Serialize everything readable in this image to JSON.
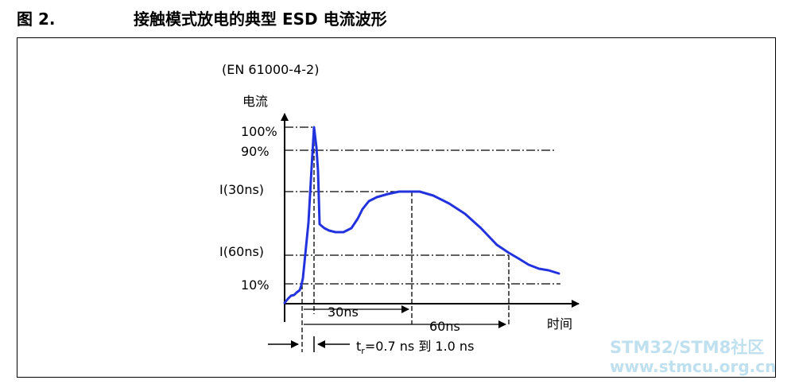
{
  "figure": {
    "number": "图 2.",
    "title": "接触模式放电的典型 ESD 电流波形"
  },
  "diagram": {
    "standard": "(EN 61000-4-2)",
    "y_axis_label": "电流",
    "x_axis_label": "时间",
    "levels": {
      "p100": "100%",
      "p90": "90%",
      "i30": "I(30ns)",
      "i60": "I(60ns)",
      "p10": "10%"
    },
    "time_30ns": "30ns",
    "time_60ns": "60ns",
    "rise_time": {
      "prefix": "t",
      "subscript": "r",
      "value": "=0.7 ns 到 1.0 ns"
    },
    "colors": {
      "waveform": "#2233dd",
      "lines": "#000000"
    }
  },
  "watermark": {
    "line1": "STM32/STM8社区",
    "line2": "www.stmcu.org.cn"
  }
}
